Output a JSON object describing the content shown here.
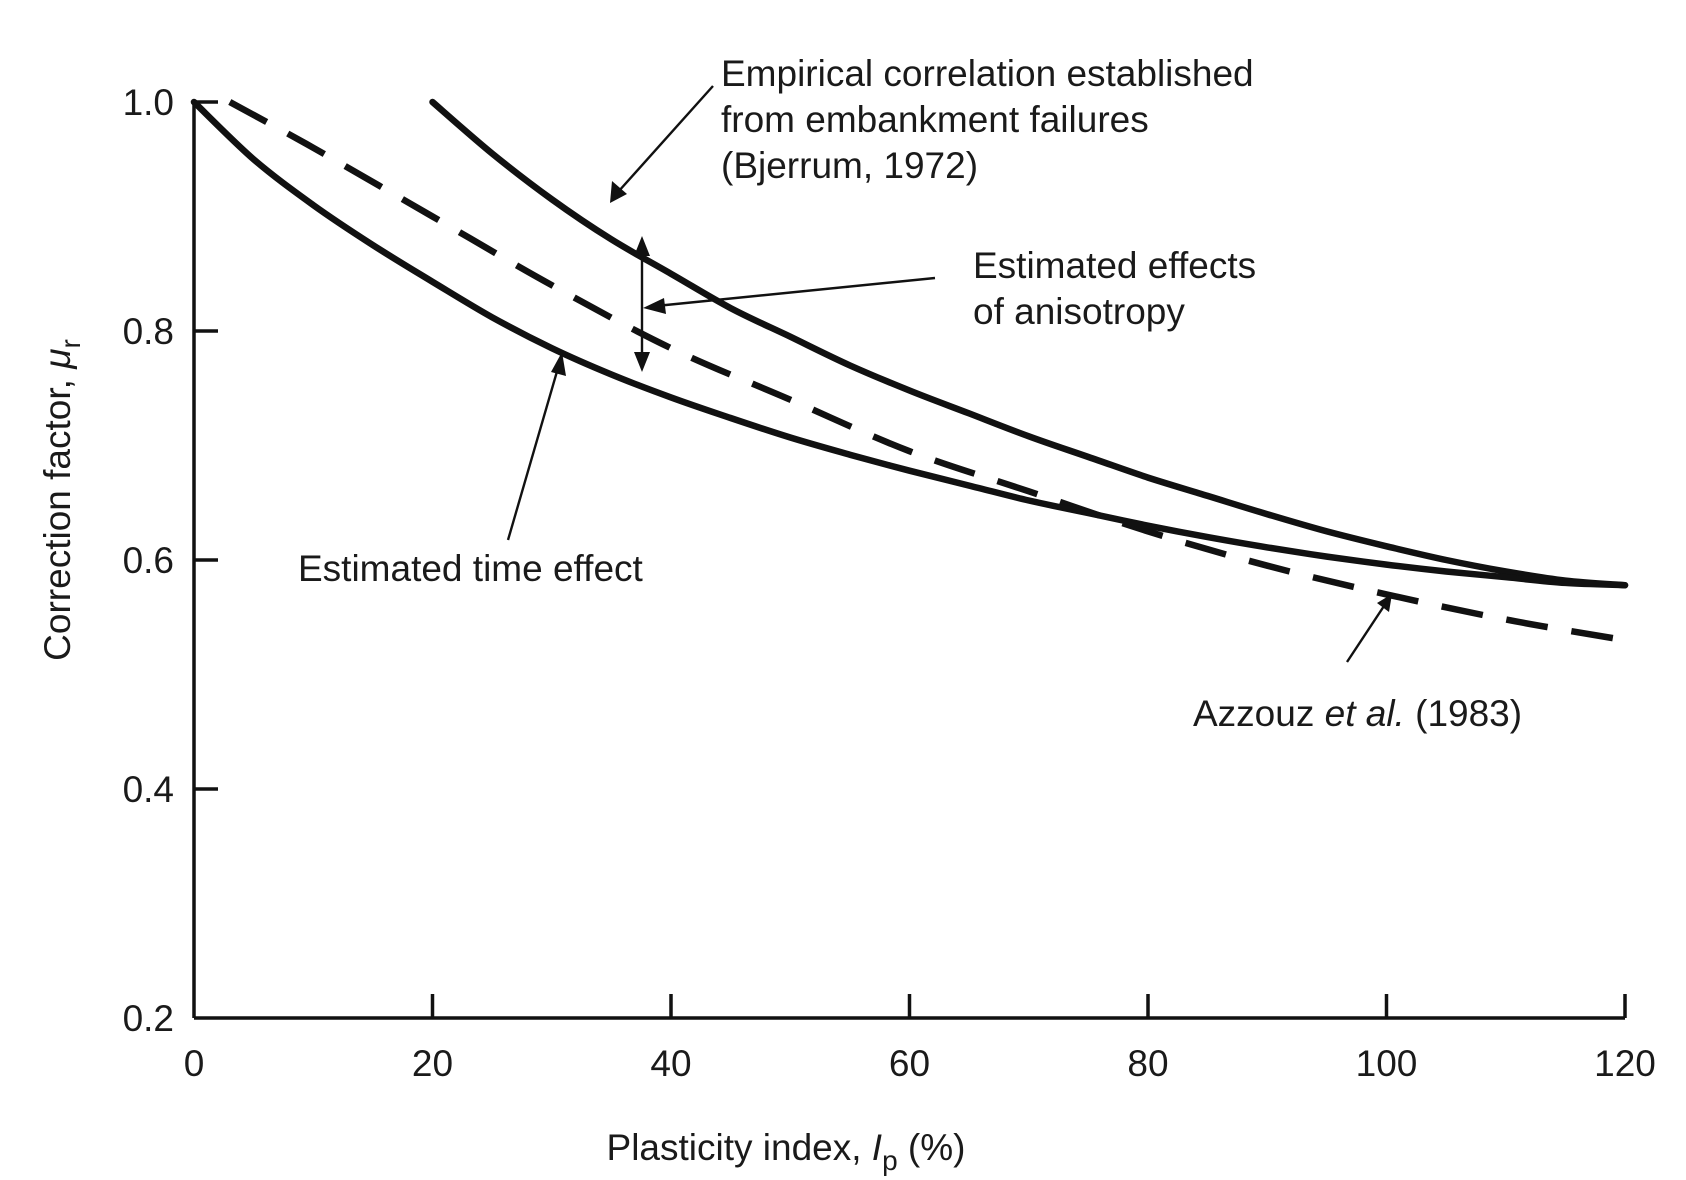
{
  "chart_data": {
    "type": "line",
    "xlabel_prefix": "Plasticity index, ",
    "xlabel_symbol": "I",
    "xlabel_sub": "p",
    "xlabel_suffix": " (%)",
    "ylabel_prefix": "Correction factor, ",
    "ylabel_symbol": "μ",
    "ylabel_sub": "r",
    "xlim": [
      0,
      120
    ],
    "ylim": [
      0.2,
      1.0
    ],
    "xticks": [
      "0",
      "20",
      "40",
      "60",
      "80",
      "100",
      "120"
    ],
    "yticks": [
      "0.2",
      "0.4",
      "0.6",
      "0.8",
      "1.0"
    ],
    "grid": false,
    "series": [
      {
        "style": "solid",
        "x": [
          20,
          25,
          30,
          35,
          40,
          45,
          50,
          55,
          60,
          65,
          70,
          75,
          80,
          85,
          90,
          95,
          100,
          105,
          110,
          115,
          120
        ],
        "y": [
          1.0,
          0.955,
          0.915,
          0.88,
          0.85,
          0.82,
          0.795,
          0.77,
          0.748,
          0.728,
          0.708,
          0.69,
          0.672,
          0.656,
          0.64,
          0.625,
          0.612,
          0.6,
          0.59,
          0.582,
          0.578
        ]
      },
      {
        "style": "dashed",
        "x": [
          3,
          10,
          20,
          30,
          40,
          50,
          60,
          70,
          80,
          90,
          100,
          110,
          120
        ],
        "y": [
          1.0,
          0.96,
          0.9,
          0.84,
          0.785,
          0.74,
          0.695,
          0.66,
          0.625,
          0.595,
          0.57,
          0.548,
          0.53
        ]
      },
      {
        "style": "solid",
        "x": [
          0,
          5,
          10,
          15,
          20,
          25,
          30,
          35,
          40,
          45,
          50,
          55,
          60,
          65,
          70,
          75,
          80,
          85,
          90,
          95,
          100,
          105,
          110,
          115,
          120
        ],
        "y": [
          1.0,
          0.95,
          0.91,
          0.875,
          0.843,
          0.812,
          0.785,
          0.762,
          0.742,
          0.724,
          0.707,
          0.692,
          0.678,
          0.665,
          0.652,
          0.641,
          0.63,
          0.62,
          0.611,
          0.603,
          0.596,
          0.59,
          0.585,
          0.58,
          0.578
        ]
      }
    ],
    "annotations": {
      "bjerrum": [
        "Empirical correlation established",
        "from embankment failures",
        "(Bjerrum, 1972)"
      ],
      "anisotropy": [
        "Estimated effects",
        "of anisotropy"
      ],
      "time_effect": "Estimated time effect",
      "azzouz_a": "Azzouz ",
      "azzouz_b": "et al.",
      "azzouz_c": " (1983)"
    }
  }
}
